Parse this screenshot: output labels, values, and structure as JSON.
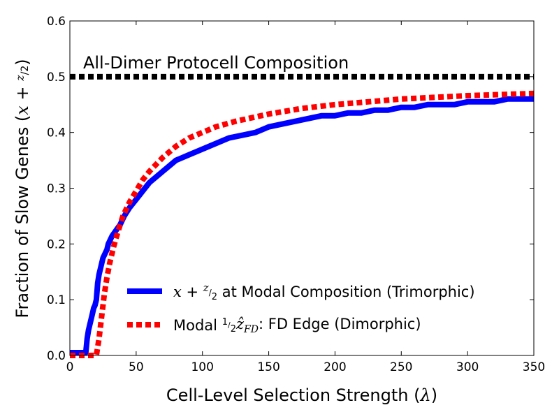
{
  "chart_data": {
    "type": "line",
    "xlabel": "Cell-Level Selection Strength (λ)",
    "ylabel": "Fraction of Slow Genes (x + z/2)",
    "xlim": [
      0,
      350
    ],
    "ylim": [
      0,
      0.6
    ],
    "x_ticks": [
      "0",
      "50",
      "100",
      "150",
      "200",
      "250",
      "300",
      "350"
    ],
    "y_ticks": [
      "0.0",
      "0.1",
      "0.2",
      "0.3",
      "0.4",
      "0.5",
      "0.6"
    ],
    "grid": false,
    "legend_placement": "lower-right",
    "annotation": {
      "text": "All-Dimer Protocell Composition",
      "x": 10,
      "y": 0.525
    },
    "reference_line": {
      "y": 0.5,
      "color": "#000000",
      "style": "dotted"
    },
    "series": [
      {
        "name": "x + z/2 at Modal Composition (Trimorphic)",
        "legend_main": "x + ",
        "legend_suffix": " at Modal Composition (Trimorphic)",
        "color": "#0000ff",
        "style": "solid",
        "x": [
          0,
          12,
          13,
          14,
          15,
          16,
          17,
          18,
          19,
          20,
          21,
          22,
          23,
          24,
          25,
          26,
          27,
          28,
          29,
          30,
          32,
          35,
          38,
          41,
          45,
          50,
          55,
          60,
          65,
          70,
          75,
          80,
          90,
          100,
          110,
          120,
          130,
          140,
          150,
          160,
          170,
          180,
          190,
          200,
          210,
          220,
          230,
          240,
          250,
          260,
          270,
          280,
          290,
          300,
          310,
          320,
          330,
          340,
          350
        ],
        "y": [
          0.005,
          0.005,
          0.03,
          0.045,
          0.055,
          0.065,
          0.075,
          0.085,
          0.09,
          0.1,
          0.13,
          0.145,
          0.155,
          0.165,
          0.175,
          0.18,
          0.185,
          0.19,
          0.2,
          0.205,
          0.215,
          0.225,
          0.235,
          0.25,
          0.265,
          0.28,
          0.295,
          0.31,
          0.32,
          0.33,
          0.34,
          0.35,
          0.36,
          0.37,
          0.38,
          0.39,
          0.395,
          0.4,
          0.41,
          0.415,
          0.42,
          0.425,
          0.43,
          0.43,
          0.435,
          0.435,
          0.44,
          0.44,
          0.445,
          0.445,
          0.45,
          0.45,
          0.45,
          0.455,
          0.455,
          0.455,
          0.46,
          0.46,
          0.46
        ]
      },
      {
        "name": "Modal ½ẑFD: FD Edge (Dimorphic)",
        "legend_main": "Modal ",
        "legend_suffix": ": FD Edge (Dimorphic)",
        "color": "#ff0000",
        "style": "dotted",
        "x": [
          0,
          20,
          22,
          24,
          26,
          28,
          30,
          33,
          36,
          40,
          45,
          50,
          55,
          60,
          70,
          80,
          90,
          100,
          110,
          125,
          150,
          175,
          200,
          225,
          250,
          275,
          300,
          325,
          350
        ],
        "y": [
          0.0,
          0.0,
          0.03,
          0.07,
          0.11,
          0.14,
          0.165,
          0.195,
          0.22,
          0.25,
          0.275,
          0.295,
          0.315,
          0.33,
          0.355,
          0.375,
          0.39,
          0.4,
          0.41,
          0.42,
          0.433,
          0.443,
          0.45,
          0.455,
          0.46,
          0.463,
          0.466,
          0.468,
          0.47
        ]
      }
    ]
  }
}
